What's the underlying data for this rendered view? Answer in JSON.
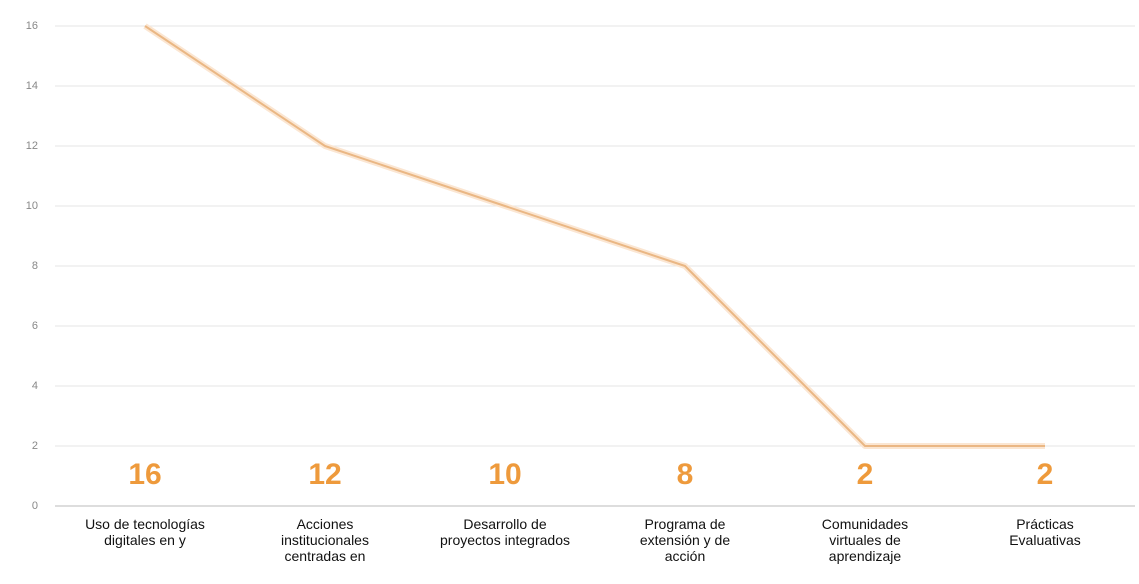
{
  "chart_data": {
    "type": "line",
    "categories": [
      "Uso de tecnologías digitales en y",
      "Acciones institucionales centradas en",
      "Desarrollo de proyectos integrados",
      "Programa de extensión y de acción",
      "Comunidades virtuales de aprendizaje",
      "Prácticas Evaluativas"
    ],
    "values": [
      16,
      12,
      10,
      8,
      2,
      2
    ],
    "color": "#eab784",
    "label_color": "#ee9a3c",
    "ylim": [
      0,
      16
    ],
    "yticks": [
      0,
      2,
      4,
      6,
      8,
      10,
      12,
      14,
      16
    ],
    "grid": true
  }
}
